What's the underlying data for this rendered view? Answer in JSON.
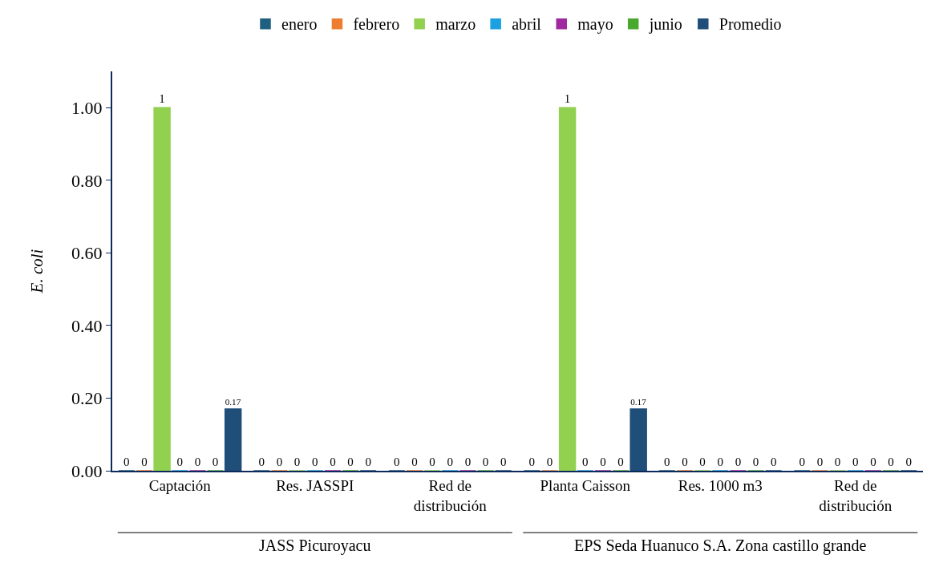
{
  "chart_data": {
    "type": "bar",
    "ylabel": "E. coli",
    "categories": [
      "Captación",
      "Res. JASSPI",
      "Red de distribución",
      "Planta Caisson",
      "Res. 1000 m3",
      "Red de distribución"
    ],
    "series": [
      {
        "name": "enero",
        "color": "#1f5f7f",
        "values": [
          0,
          0,
          0,
          0,
          0,
          0
        ]
      },
      {
        "name": "febrero",
        "color": "#ed7d31",
        "values": [
          0,
          0,
          0,
          0,
          0,
          0
        ]
      },
      {
        "name": "marzo",
        "color": "#92d050",
        "values": [
          1,
          0,
          0,
          1,
          0,
          0
        ]
      },
      {
        "name": "abril",
        "color": "#1ba1e2",
        "values": [
          0,
          0,
          0,
          0,
          0,
          0
        ]
      },
      {
        "name": "mayo",
        "color": "#a0289e",
        "values": [
          0,
          0,
          0,
          0,
          0,
          0
        ]
      },
      {
        "name": "junio",
        "color": "#4aa82f",
        "values": [
          0,
          0,
          0,
          0,
          0,
          0
        ]
      },
      {
        "name": "Promedio",
        "color": "#1f4e79",
        "values": [
          0.17,
          0,
          0,
          0.17,
          0,
          0
        ]
      }
    ],
    "ylim": [
      0,
      1.1
    ],
    "yticks": [
      {
        "value": 0,
        "label": "0.00"
      },
      {
        "value": 0.2,
        "label": "0.20"
      },
      {
        "value": 0.4,
        "label": "0.40"
      },
      {
        "value": 0.6,
        "label": "0.60"
      },
      {
        "value": 0.8,
        "label": "0.80"
      },
      {
        "value": 1,
        "label": "1.00"
      }
    ],
    "data_labels": true,
    "grid": false,
    "legend": "top",
    "annotations": [
      "JASS Picuroyacu",
      "EPS Seda Huanuco S.A. Zona castillo grande"
    ]
  }
}
